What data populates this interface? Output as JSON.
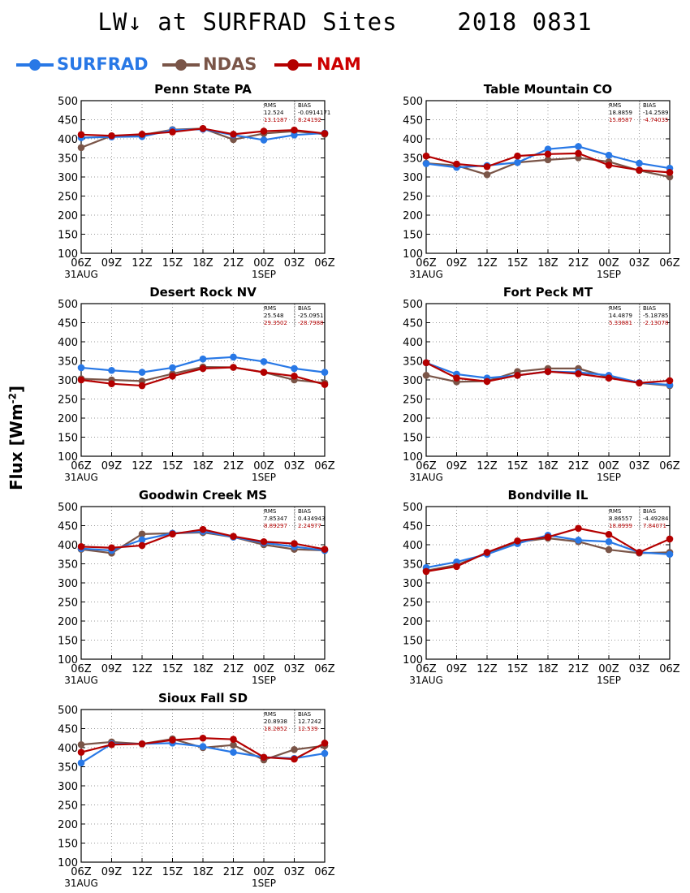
{
  "title": "LW↓ at SURFRAD Sites    2018 0831",
  "y_axis_label": "Flux [Wm",
  "y_axis_label_sup": "-2",
  "y_axis_label_end": "]",
  "legend": [
    {
      "name": "SURFRAD",
      "color": "#2878e6"
    },
    {
      "name": "NDAS",
      "color": "#7a5548"
    },
    {
      "name": "NAM",
      "color": "#b40000"
    }
  ],
  "colors": {
    "SURFRAD": "#2878e6",
    "NDAS": "#7a5548",
    "NAM": "#b40000",
    "stats_text": "#b40000"
  },
  "chart_data": [
    {
      "type": "line",
      "title": "Penn State PA",
      "categories": [
        "06Z",
        "09Z",
        "12Z",
        "15Z",
        "18Z",
        "21Z",
        "00Z",
        "03Z",
        "06Z"
      ],
      "date_labels": [
        "31AUG",
        "1SEP"
      ],
      "ylim": [
        100,
        500
      ],
      "yticks": [
        100,
        150,
        200,
        250,
        300,
        350,
        400,
        450,
        500
      ],
      "grid": true,
      "series": [
        {
          "name": "SURFRAD",
          "values": [
            403,
            405,
            406,
            423,
            425,
            410,
            397,
            410,
            415
          ]
        },
        {
          "name": "NDAS",
          "values": [
            377,
            408,
            410,
            424,
            427,
            398,
            414,
            420,
            412
          ]
        },
        {
          "name": "NAM",
          "values": [
            411,
            408,
            412,
            418,
            427,
            412,
            420,
            423,
            414
          ]
        }
      ],
      "stats": {
        "headers": [
          "RMS",
          "BIAS"
        ],
        "ndas": [
          "12.524",
          "-0.0914171"
        ],
        "nam": [
          "13.1187",
          "8.24192"
        ]
      }
    },
    {
      "type": "line",
      "title": "Table Mountain CO",
      "categories": [
        "06Z",
        "09Z",
        "12Z",
        "15Z",
        "18Z",
        "21Z",
        "00Z",
        "03Z",
        "06Z"
      ],
      "date_labels": [
        "31AUG",
        "1SEP"
      ],
      "ylim": [
        100,
        500
      ],
      "yticks": [
        100,
        150,
        200,
        250,
        300,
        350,
        400,
        450,
        500
      ],
      "grid": true,
      "series": [
        {
          "name": "SURFRAD",
          "values": [
            335,
            325,
            330,
            338,
            373,
            380,
            357,
            336,
            323
          ]
        },
        {
          "name": "NDAS",
          "values": [
            336,
            330,
            306,
            338,
            345,
            350,
            340,
            317,
            300
          ]
        },
        {
          "name": "NAM",
          "values": [
            355,
            334,
            327,
            355,
            360,
            362,
            331,
            318,
            312
          ]
        }
      ],
      "stats": {
        "headers": [
          "RMS",
          "BIAS"
        ],
        "ndas": [
          "18.8859",
          "-14.2589"
        ],
        "nam": [
          "15.8587",
          "-4.74035"
        ]
      }
    },
    {
      "type": "line",
      "title": "Desert Rock NV",
      "categories": [
        "06Z",
        "09Z",
        "12Z",
        "15Z",
        "18Z",
        "21Z",
        "00Z",
        "03Z",
        "06Z"
      ],
      "date_labels": [
        "31AUG",
        "1SEP"
      ],
      "ylim": [
        100,
        500
      ],
      "yticks": [
        100,
        150,
        200,
        250,
        300,
        350,
        400,
        450,
        500
      ],
      "grid": true,
      "series": [
        {
          "name": "SURFRAD",
          "values": [
            332,
            325,
            320,
            332,
            355,
            360,
            348,
            330,
            320
          ]
        },
        {
          "name": "NDAS",
          "values": [
            303,
            300,
            297,
            316,
            334,
            333,
            320,
            300,
            292
          ]
        },
        {
          "name": "NAM",
          "values": [
            300,
            290,
            285,
            310,
            330,
            333,
            320,
            310,
            288
          ]
        }
      ],
      "stats": {
        "headers": [
          "RMS",
          "BIAS"
        ],
        "ndas": [
          "25.548",
          "-25.0951"
        ],
        "nam": [
          "29.3502",
          "-28.7988"
        ]
      }
    },
    {
      "type": "line",
      "title": "Fort Peck MT",
      "categories": [
        "06Z",
        "09Z",
        "12Z",
        "15Z",
        "18Z",
        "21Z",
        "00Z",
        "03Z",
        "06Z"
      ],
      "date_labels": [
        "31AUG",
        "1SEP"
      ],
      "ylim": [
        100,
        500
      ],
      "yticks": [
        100,
        150,
        200,
        250,
        300,
        350,
        400,
        450,
        500
      ],
      "grid": true,
      "series": [
        {
          "name": "SURFRAD",
          "values": [
            345,
            315,
            305,
            312,
            322,
            320,
            312,
            293,
            287
          ]
        },
        {
          "name": "NDAS",
          "values": [
            312,
            295,
            297,
            322,
            330,
            330,
            307,
            292,
            285
          ]
        },
        {
          "name": "NAM",
          "values": [
            345,
            305,
            296,
            312,
            322,
            316,
            305,
            292,
            298
          ]
        }
      ],
      "stats": {
        "headers": [
          "RMS",
          "BIAS"
        ],
        "ndas": [
          "14.4879",
          "-5.18785"
        ],
        "nam": [
          "5.33881",
          "-2.13078"
        ]
      }
    },
    {
      "type": "line",
      "title": "Goodwin Creek MS",
      "categories": [
        "06Z",
        "09Z",
        "12Z",
        "15Z",
        "18Z",
        "21Z",
        "00Z",
        "03Z",
        "06Z"
      ],
      "date_labels": [
        "31AUG",
        "1SEP"
      ],
      "ylim": [
        100,
        500
      ],
      "yticks": [
        100,
        150,
        200,
        250,
        300,
        350,
        400,
        450,
        500
      ],
      "grid": true,
      "series": [
        {
          "name": "SURFRAD",
          "values": [
            390,
            385,
            413,
            430,
            435,
            420,
            405,
            395,
            385
          ]
        },
        {
          "name": "NDAS",
          "values": [
            388,
            378,
            428,
            430,
            432,
            420,
            400,
            388,
            385
          ]
        },
        {
          "name": "NAM",
          "values": [
            395,
            392,
            398,
            428,
            440,
            422,
            408,
            403,
            388
          ]
        }
      ],
      "stats": {
        "headers": [
          "RMS",
          "BIAS"
        ],
        "ndas": [
          "7.85347",
          "0.434943"
        ],
        "nam": [
          "8.89297",
          "2.24977"
        ]
      }
    },
    {
      "type": "line",
      "title": "Bondville IL",
      "categories": [
        "06Z",
        "09Z",
        "12Z",
        "15Z",
        "18Z",
        "21Z",
        "00Z",
        "03Z",
        "06Z"
      ],
      "date_labels": [
        "31AUG",
        "1SEP"
      ],
      "ylim": [
        100,
        500
      ],
      "yticks": [
        100,
        150,
        200,
        250,
        300,
        350,
        400,
        450,
        500
      ],
      "grid": true,
      "series": [
        {
          "name": "SURFRAD",
          "values": [
            340,
            355,
            375,
            403,
            425,
            412,
            408,
            380,
            375
          ]
        },
        {
          "name": "NDAS",
          "values": [
            332,
            347,
            378,
            407,
            417,
            408,
            387,
            378,
            380
          ]
        },
        {
          "name": "NAM",
          "values": [
            330,
            343,
            380,
            410,
            420,
            443,
            427,
            380,
            415
          ]
        }
      ],
      "stats": {
        "headers": [
          "RMS",
          "BIAS"
        ],
        "ndas": [
          "8.86557",
          "-4.49284"
        ],
        "nam": [
          "18.8999",
          "7.84071"
        ]
      }
    },
    {
      "type": "line",
      "title": "Sioux Fall SD",
      "categories": [
        "06Z",
        "09Z",
        "12Z",
        "15Z",
        "18Z",
        "21Z",
        "00Z",
        "03Z",
        "06Z"
      ],
      "date_labels": [
        "31AUG",
        "1SEP"
      ],
      "ylim": [
        100,
        500
      ],
      "yticks": [
        100,
        150,
        200,
        250,
        300,
        350,
        400,
        450,
        500
      ],
      "grid": true,
      "series": [
        {
          "name": "SURFRAD",
          "values": [
            360,
            410,
            410,
            412,
            403,
            388,
            375,
            372,
            385
          ]
        },
        {
          "name": "NDAS",
          "values": [
            408,
            415,
            410,
            423,
            400,
            407,
            368,
            395,
            405
          ]
        },
        {
          "name": "NAM",
          "values": [
            388,
            408,
            410,
            420,
            425,
            422,
            375,
            370,
            412
          ]
        }
      ],
      "stats": {
        "headers": [
          "RMS",
          "BIAS"
        ],
        "ndas": [
          "20.8938",
          "12.7242"
        ],
        "nam": [
          "18.2852",
          "12.539"
        ]
      }
    }
  ]
}
